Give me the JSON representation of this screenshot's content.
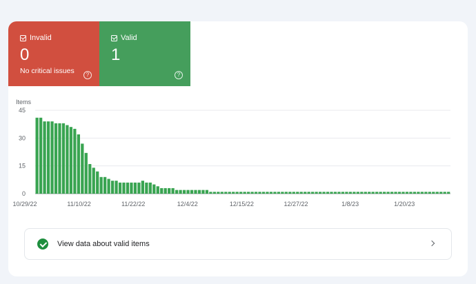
{
  "tiles": {
    "invalid": {
      "label": "Invalid",
      "count": "0",
      "subtitle": "No critical issues",
      "color": "#d14f3f",
      "help_icon": "help-circle-icon"
    },
    "valid": {
      "label": "Valid",
      "count": "1",
      "color": "#459e5c",
      "help_icon": "help-circle-icon"
    }
  },
  "action": {
    "label": "View data about valid items",
    "icon": "check-circle-icon",
    "chevron": "chevron-right-icon"
  },
  "chart_data": {
    "type": "bar",
    "ylabel": "Items",
    "ylim": [
      0,
      45
    ],
    "yticks": [
      "45",
      "30",
      "15",
      "0"
    ],
    "xticks": [
      "10/29/22",
      "11/10/22",
      "11/22/22",
      "12/4/22",
      "12/15/22",
      "12/27/22",
      "1/8/23",
      "1/20/23"
    ],
    "grid": true,
    "bar_color": "#39a451",
    "values": [
      41,
      41,
      39,
      39,
      39,
      38,
      38,
      38,
      37,
      36,
      35,
      32,
      27,
      22,
      16,
      14,
      12,
      9,
      9,
      8,
      7,
      7,
      6,
      6,
      6,
      6,
      6,
      6,
      7,
      6,
      6,
      5,
      4,
      3,
      3,
      3,
      3,
      2,
      2,
      2,
      2,
      2,
      2,
      2,
      2,
      2,
      1,
      1,
      1,
      1,
      1,
      1,
      1,
      1,
      1,
      1,
      1,
      1,
      1,
      1,
      1,
      1,
      1,
      1,
      1,
      1,
      1,
      1,
      1,
      1,
      1,
      1,
      1,
      1,
      1,
      1,
      1,
      1,
      1,
      1,
      1,
      1,
      1,
      1,
      1,
      1,
      1,
      1,
      1,
      1,
      1,
      1,
      1,
      1,
      1,
      1,
      1,
      1,
      1,
      1,
      1,
      1,
      1,
      1,
      1,
      1,
      1,
      1,
      1,
      1
    ]
  }
}
